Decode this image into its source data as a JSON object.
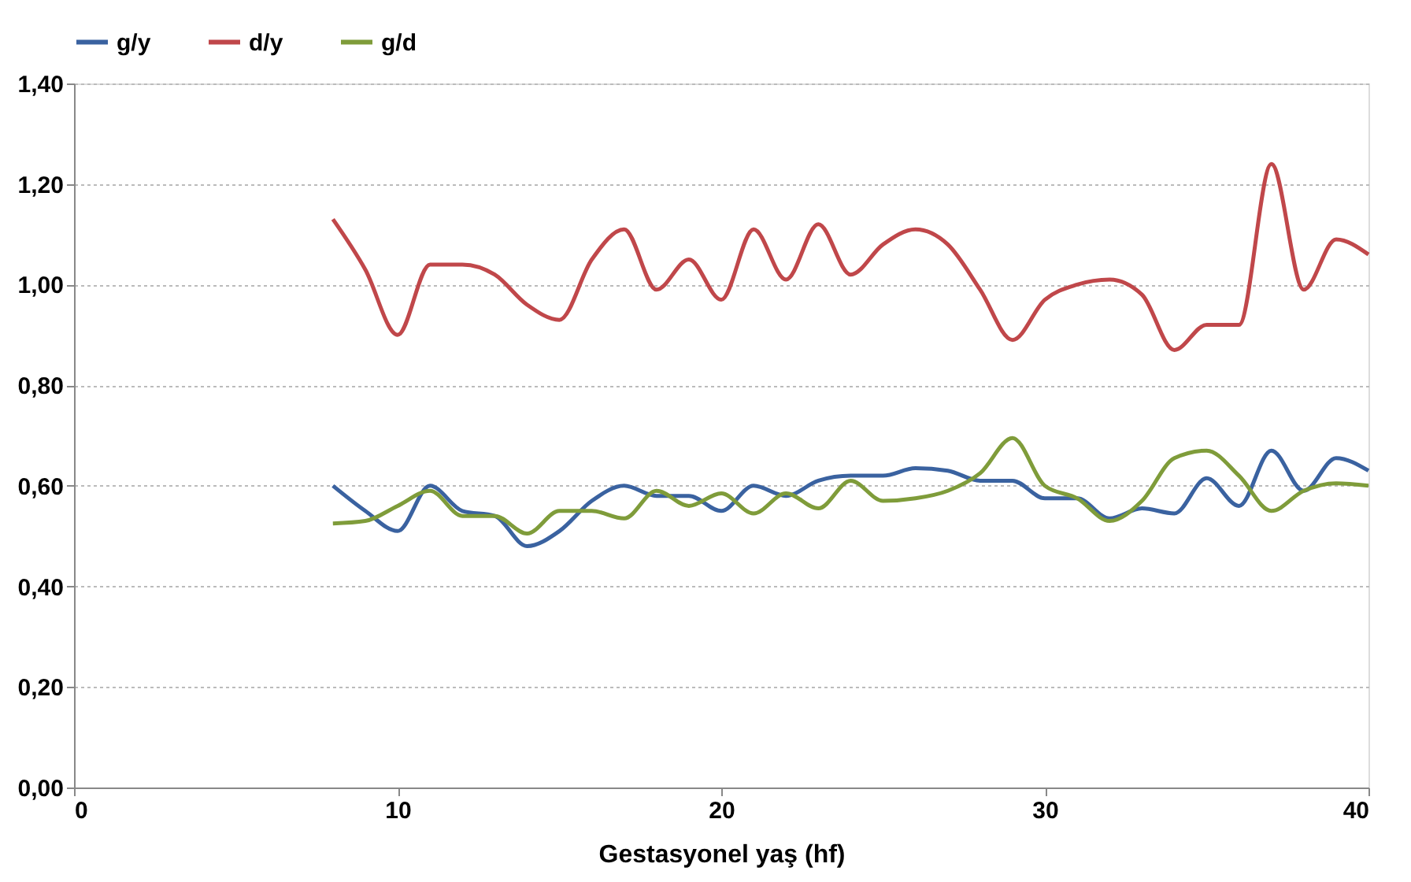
{
  "chart_data": {
    "type": "line",
    "xlabel": "Gestasyonel yaş (hf)",
    "x": [
      8,
      9,
      10,
      11,
      12,
      13,
      14,
      15,
      16,
      17,
      18,
      19,
      20,
      21,
      22,
      23,
      24,
      25,
      26,
      27,
      28,
      29,
      30,
      31,
      32,
      33,
      34,
      35,
      36,
      37,
      38,
      39,
      40
    ],
    "series": [
      {
        "name": "g/y",
        "color": "#3a62a0",
        "values": [
          0.6,
          0.55,
          0.51,
          0.6,
          0.55,
          0.54,
          0.48,
          0.51,
          0.57,
          0.6,
          0.58,
          0.58,
          0.55,
          0.6,
          0.58,
          0.61,
          0.62,
          0.62,
          0.635,
          0.63,
          0.61,
          0.61,
          0.575,
          0.575,
          0.535,
          0.555,
          0.545,
          0.615,
          0.56,
          0.67,
          0.59,
          0.655,
          0.63
        ]
      },
      {
        "name": "d/y",
        "color": "#c0474a",
        "values": [
          1.13,
          1.03,
          0.9,
          1.04,
          1.04,
          1.02,
          0.96,
          0.93,
          1.05,
          1.11,
          0.99,
          1.05,
          0.97,
          1.11,
          1.01,
          1.12,
          1.02,
          1.08,
          1.11,
          1.08,
          0.99,
          0.89,
          0.97,
          1.0,
          1.01,
          0.98,
          0.87,
          0.92,
          0.92,
          1.24,
          0.99,
          1.09,
          1.06
        ]
      },
      {
        "name": "g/d",
        "color": "#7f9c3a",
        "values": [
          0.525,
          0.53,
          0.56,
          0.59,
          0.54,
          0.54,
          0.505,
          0.55,
          0.55,
          0.535,
          0.59,
          0.56,
          0.585,
          0.545,
          0.585,
          0.555,
          0.61,
          0.57,
          0.575,
          0.59,
          0.625,
          0.695,
          0.6,
          0.575,
          0.53,
          0.57,
          0.655,
          0.67,
          0.62,
          0.55,
          0.59,
          0.605,
          0.6
        ]
      }
    ],
    "xlim": [
      0,
      40
    ],
    "xticks": [
      0,
      10,
      20,
      30,
      40
    ],
    "ylim": [
      0,
      1.4
    ],
    "yticks": [
      {
        "value": 0,
        "label": "0,00"
      },
      {
        "value": 0.2,
        "label": "0,20"
      },
      {
        "value": 0.4,
        "label": "0,40"
      },
      {
        "value": 0.6,
        "label": "0,60"
      },
      {
        "value": 0.8,
        "label": "0,80"
      },
      {
        "value": 1.0,
        "label": "1,00"
      },
      {
        "value": 1.2,
        "label": "1,20"
      },
      {
        "value": 1.4,
        "label": "1,40"
      }
    ],
    "grid": "y",
    "legend": "top",
    "marker": "none",
    "line_style": "solid"
  }
}
